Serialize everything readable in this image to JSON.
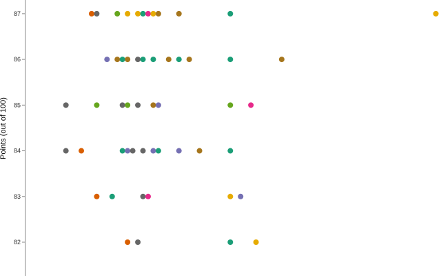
{
  "chart_data": {
    "type": "scatter",
    "title": "",
    "xlabel": "",
    "ylabel": "Points (out of 100)",
    "xlim": [
      0,
      81
    ],
    "ylim": [
      81.26,
      87.3
    ],
    "yticks": [
      "82",
      "83",
      "84",
      "85",
      "86",
      "87"
    ],
    "grid": false,
    "points": [
      {
        "x": 13,
        "y": 87,
        "color": "#d95f02"
      },
      {
        "x": 14,
        "y": 87,
        "color": "#666666"
      },
      {
        "x": 18,
        "y": 87,
        "color": "#66a61e"
      },
      {
        "x": 20,
        "y": 87,
        "color": "#e6ab02"
      },
      {
        "x": 22,
        "y": 87,
        "color": "#e6ab02"
      },
      {
        "x": 23,
        "y": 87,
        "color": "#1b9e77"
      },
      {
        "x": 24,
        "y": 87,
        "color": "#e7298a"
      },
      {
        "x": 25,
        "y": 87,
        "color": "#e6ab02"
      },
      {
        "x": 26,
        "y": 87,
        "color": "#a6761d"
      },
      {
        "x": 30,
        "y": 87,
        "color": "#a6761d"
      },
      {
        "x": 40,
        "y": 87,
        "color": "#1b9e77"
      },
      {
        "x": 80,
        "y": 87,
        "color": "#e6ab02"
      },
      {
        "x": 16,
        "y": 86,
        "color": "#7570b3"
      },
      {
        "x": 18,
        "y": 86,
        "color": "#a6761d"
      },
      {
        "x": 19,
        "y": 86,
        "color": "#1b9e77"
      },
      {
        "x": 20,
        "y": 86,
        "color": "#a6761d"
      },
      {
        "x": 22,
        "y": 86,
        "color": "#666666"
      },
      {
        "x": 23,
        "y": 86,
        "color": "#1b9e77"
      },
      {
        "x": 25,
        "y": 86,
        "color": "#1b9e77"
      },
      {
        "x": 28,
        "y": 86,
        "color": "#a6761d"
      },
      {
        "x": 30,
        "y": 86,
        "color": "#1b9e77"
      },
      {
        "x": 32,
        "y": 86,
        "color": "#a6761d"
      },
      {
        "x": 40,
        "y": 86,
        "color": "#1b9e77"
      },
      {
        "x": 50,
        "y": 86,
        "color": "#a6761d"
      },
      {
        "x": 8,
        "y": 85,
        "color": "#666666"
      },
      {
        "x": 14,
        "y": 85,
        "color": "#66a61e"
      },
      {
        "x": 19,
        "y": 85,
        "color": "#666666"
      },
      {
        "x": 20,
        "y": 85,
        "color": "#66a61e"
      },
      {
        "x": 22,
        "y": 85,
        "color": "#666666"
      },
      {
        "x": 25,
        "y": 85,
        "color": "#a6761d"
      },
      {
        "x": 26,
        "y": 85,
        "color": "#7570b3"
      },
      {
        "x": 40,
        "y": 85,
        "color": "#66a61e"
      },
      {
        "x": 44,
        "y": 85,
        "color": "#e7298a"
      },
      {
        "x": 8,
        "y": 84,
        "color": "#666666"
      },
      {
        "x": 11,
        "y": 84,
        "color": "#d95f02"
      },
      {
        "x": 19,
        "y": 84,
        "color": "#1b9e77"
      },
      {
        "x": 20,
        "y": 84,
        "color": "#7570b3"
      },
      {
        "x": 21,
        "y": 84,
        "color": "#666666"
      },
      {
        "x": 23,
        "y": 84,
        "color": "#666666"
      },
      {
        "x": 25,
        "y": 84,
        "color": "#7570b3"
      },
      {
        "x": 26,
        "y": 84,
        "color": "#1b9e77"
      },
      {
        "x": 30,
        "y": 84,
        "color": "#7570b3"
      },
      {
        "x": 34,
        "y": 84,
        "color": "#a6761d"
      },
      {
        "x": 40,
        "y": 84,
        "color": "#1b9e77"
      },
      {
        "x": 14,
        "y": 83,
        "color": "#d95f02"
      },
      {
        "x": 17,
        "y": 83,
        "color": "#1b9e77"
      },
      {
        "x": 23,
        "y": 83,
        "color": "#666666"
      },
      {
        "x": 24,
        "y": 83,
        "color": "#e7298a"
      },
      {
        "x": 40,
        "y": 83,
        "color": "#e6ab02"
      },
      {
        "x": 42,
        "y": 83,
        "color": "#7570b3"
      },
      {
        "x": 20,
        "y": 82,
        "color": "#d95f02"
      },
      {
        "x": 22,
        "y": 82,
        "color": "#666666"
      },
      {
        "x": 40,
        "y": 82,
        "color": "#1b9e77"
      },
      {
        "x": 45,
        "y": 82,
        "color": "#e6ab02"
      }
    ]
  }
}
